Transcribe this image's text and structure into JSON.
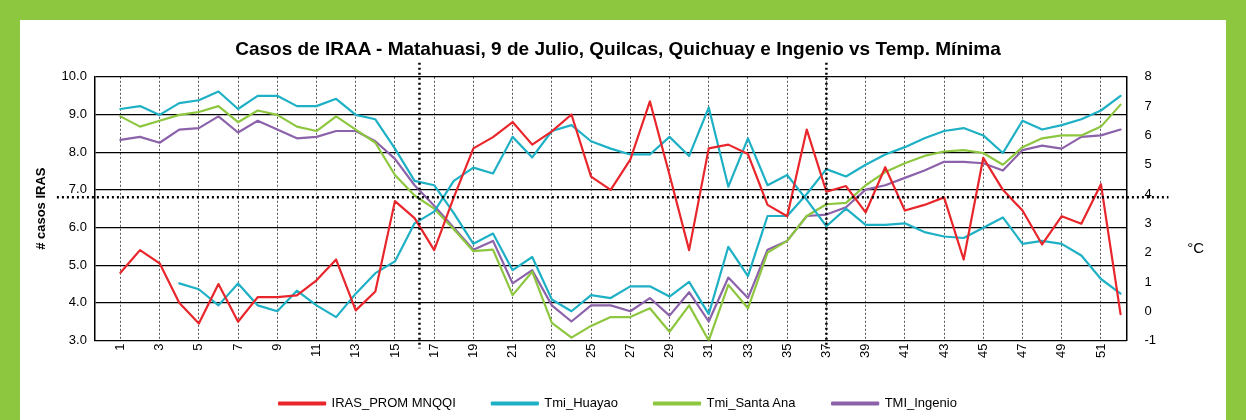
{
  "chart_data": {
    "type": "line",
    "title": "Casos de IRAA - Matahuasi, 9 de Julio, Quilcas, Quichuay e Ingenio vs Temp. Mínima",
    "ylabel": "# casos IRAS",
    "y2label": "°C",
    "x": [
      1,
      2,
      3,
      4,
      5,
      6,
      7,
      8,
      9,
      10,
      11,
      12,
      13,
      14,
      15,
      16,
      17,
      18,
      19,
      20,
      21,
      22,
      23,
      24,
      25,
      26,
      27,
      28,
      29,
      30,
      31,
      32,
      33,
      34,
      35,
      36,
      37,
      38,
      39,
      40,
      41,
      42,
      43,
      44,
      45,
      46,
      47,
      48,
      49,
      50,
      51,
      52
    ],
    "xlim": [
      -0.3,
      52.3
    ],
    "xticks": [
      1,
      3,
      5,
      7,
      9,
      11,
      13,
      15,
      17,
      19,
      21,
      23,
      25,
      27,
      29,
      31,
      33,
      35,
      37,
      39,
      41,
      43,
      45,
      47,
      49,
      51
    ],
    "ylim": [
      3,
      10
    ],
    "yticks": [
      {
        "value": 3,
        "label": "3.0"
      },
      {
        "value": 4,
        "label": "4.0"
      },
      {
        "value": 5,
        "label": "5.0"
      },
      {
        "value": 6,
        "label": "6.0"
      },
      {
        "value": 7,
        "label": "7.0"
      },
      {
        "value": 8,
        "label": "8.0"
      },
      {
        "value": 9,
        "label": "9.0"
      },
      {
        "value": 10,
        "label": "10.0"
      }
    ],
    "y2lim": [
      -1,
      8
    ],
    "y2ticks": [
      -1,
      0,
      1,
      2,
      3,
      4,
      5,
      6,
      7,
      8
    ],
    "series": [
      {
        "name": "IRAS_PROM MNQQI",
        "color": "#e8262b",
        "values": [
          4.8,
          5.4,
          5.05,
          4.0,
          3.45,
          4.5,
          3.5,
          4.15,
          4.15,
          4.2,
          4.6,
          5.15,
          3.8,
          4.3,
          6.7,
          6.25,
          5.4,
          6.8,
          8.1,
          8.4,
          8.8,
          8.2,
          8.55,
          9.0,
          7.35,
          7.0,
          7.8,
          9.35,
          7.4,
          5.4,
          8.1,
          8.2,
          7.95,
          6.6,
          6.3,
          8.6,
          6.95,
          7.1,
          6.4,
          7.6,
          6.45,
          6.6,
          6.8,
          5.15,
          7.85,
          7.0,
          6.45,
          5.55,
          6.3,
          6.1,
          7.15,
          3.7
        ]
      },
      {
        "name": "Tmi_Huayao",
        "color": "#1eb0c5",
        "axis": "y2",
        "values": [
          6.9,
          7.0,
          6.7,
          7.1,
          7.2,
          7.5,
          6.9,
          7.35,
          7.35,
          7.0,
          7.0,
          7.25,
          6.7,
          6.55,
          5.55,
          4.45,
          4.3,
          3.35,
          2.3,
          2.65,
          1.4,
          1.85,
          0.4,
          0.0,
          0.55,
          0.45,
          0.85,
          0.85,
          0.5,
          1.0,
          -0.1,
          2.2,
          1.2,
          3.25,
          3.25,
          4.0,
          4.85,
          4.6,
          5.0,
          5.35,
          5.6,
          5.9,
          6.15,
          6.25,
          6.0,
          5.4,
          6.5,
          6.2,
          6.35,
          6.55,
          6.85,
          7.35
        ]
      },
      {
        "color": "#1eb0c5",
        "axis": "y2",
        "values": [
          null,
          null,
          null,
          0.95,
          0.75,
          0.2,
          0.95,
          0.2,
          0.0,
          0.7,
          0.2,
          -0.2,
          0.6,
          1.3,
          1.7,
          3.0,
          3.4,
          4.45,
          4.9,
          4.7,
          5.95,
          5.25,
          6.15,
          6.35,
          5.8,
          5.55,
          5.35,
          5.35,
          5.95,
          5.3,
          6.95,
          4.25,
          5.9,
          4.3,
          4.65,
          3.8,
          2.9,
          3.5,
          2.95,
          2.95,
          3.0,
          2.7,
          2.55,
          2.5,
          2.85,
          3.2,
          2.3,
          2.4,
          2.3,
          1.9,
          1.1,
          0.6
        ]
      },
      {
        "name": "Tmi_Santa Ana",
        "color": "#8dc63f",
        "axis": "y2",
        "values": [
          6.65,
          6.3,
          6.5,
          6.7,
          6.8,
          7.0,
          6.45,
          6.85,
          6.7,
          6.3,
          6.15,
          6.65,
          6.2,
          5.75,
          4.65,
          3.95,
          3.5,
          2.8,
          2.05,
          2.1,
          0.55,
          1.35,
          -0.4,
          -0.9,
          -0.5,
          -0.2,
          -0.2,
          0.1,
          -0.7,
          0.2,
          -1.0,
          0.9,
          0.1,
          2.0,
          2.4,
          3.25,
          3.65,
          3.7,
          4.3,
          4.75,
          5.05,
          5.3,
          5.45,
          5.5,
          5.4,
          5.0,
          5.6,
          5.9,
          6.0,
          6.0,
          6.3,
          7.05
        ]
      },
      {
        "name": "TMI_Ingenio",
        "color": "#8c62aa",
        "axis": "y2",
        "values": [
          5.85,
          5.95,
          5.75,
          6.2,
          6.25,
          6.65,
          6.1,
          6.5,
          6.2,
          5.9,
          5.95,
          6.15,
          6.15,
          5.8,
          5.2,
          4.3,
          3.6,
          2.85,
          2.1,
          2.4,
          0.95,
          1.4,
          0.2,
          -0.35,
          0.2,
          0.2,
          0.0,
          0.45,
          -0.15,
          0.65,
          -0.35,
          1.15,
          0.45,
          2.1,
          2.4,
          3.25,
          3.3,
          3.55,
          4.15,
          4.3,
          4.55,
          4.8,
          5.1,
          5.1,
          5.05,
          4.8,
          5.5,
          5.65,
          5.55,
          5.95,
          6.0,
          6.2
        ]
      }
    ],
    "ref_lines": [
      {
        "axis": "x",
        "value": 16.25,
        "color": "#000000",
        "line_style": "dotted"
      },
      {
        "axis": "x",
        "value": 37,
        "color": "#000000",
        "line_style": "dotted"
      },
      {
        "axis": "y",
        "value": 6.8,
        "color": "#000000",
        "line_style": "dotted"
      }
    ],
    "grid": true,
    "legend": "bottom",
    "marker": "none",
    "line_style": "solid"
  }
}
